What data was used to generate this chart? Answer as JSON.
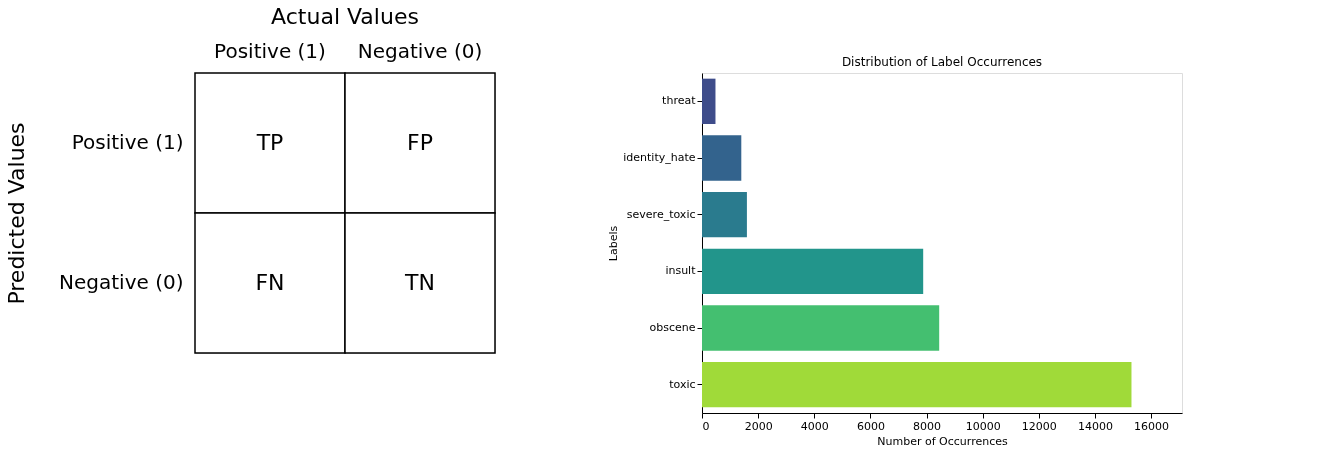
{
  "chart_data": [
    {
      "type": "other",
      "title": "Actual Values",
      "ylabel": "Predicted Values",
      "categories": [
        "Positive (1)",
        "Negative (0)"
      ],
      "y_categories": [
        "Positive (1)",
        "Negative (0)"
      ],
      "cell_labels": [
        [
          "TP",
          "FP"
        ],
        [
          "FN",
          "TN"
        ]
      ]
    },
    {
      "type": "bar",
      "orientation": "horizontal",
      "title": "Distribution of Label Occurrences",
      "xlabel": "Number of Occurrences",
      "ylabel": "Labels",
      "categories": [
        "threat",
        "identity_hate",
        "severe_toxic",
        "insult",
        "obscene",
        "toxic"
      ],
      "values": [
        480,
        1400,
        1600,
        7880,
        8450,
        15300
      ],
      "colors": [
        "#3e4c8a",
        "#33638d",
        "#2a7b8e",
        "#22958b",
        "#44bf70",
        "#a0da39"
      ],
      "xlim": [
        0,
        17100
      ],
      "xticks": [
        0,
        2000,
        4000,
        6000,
        8000,
        10000,
        12000,
        14000,
        16000
      ],
      "grid": false
    }
  ]
}
